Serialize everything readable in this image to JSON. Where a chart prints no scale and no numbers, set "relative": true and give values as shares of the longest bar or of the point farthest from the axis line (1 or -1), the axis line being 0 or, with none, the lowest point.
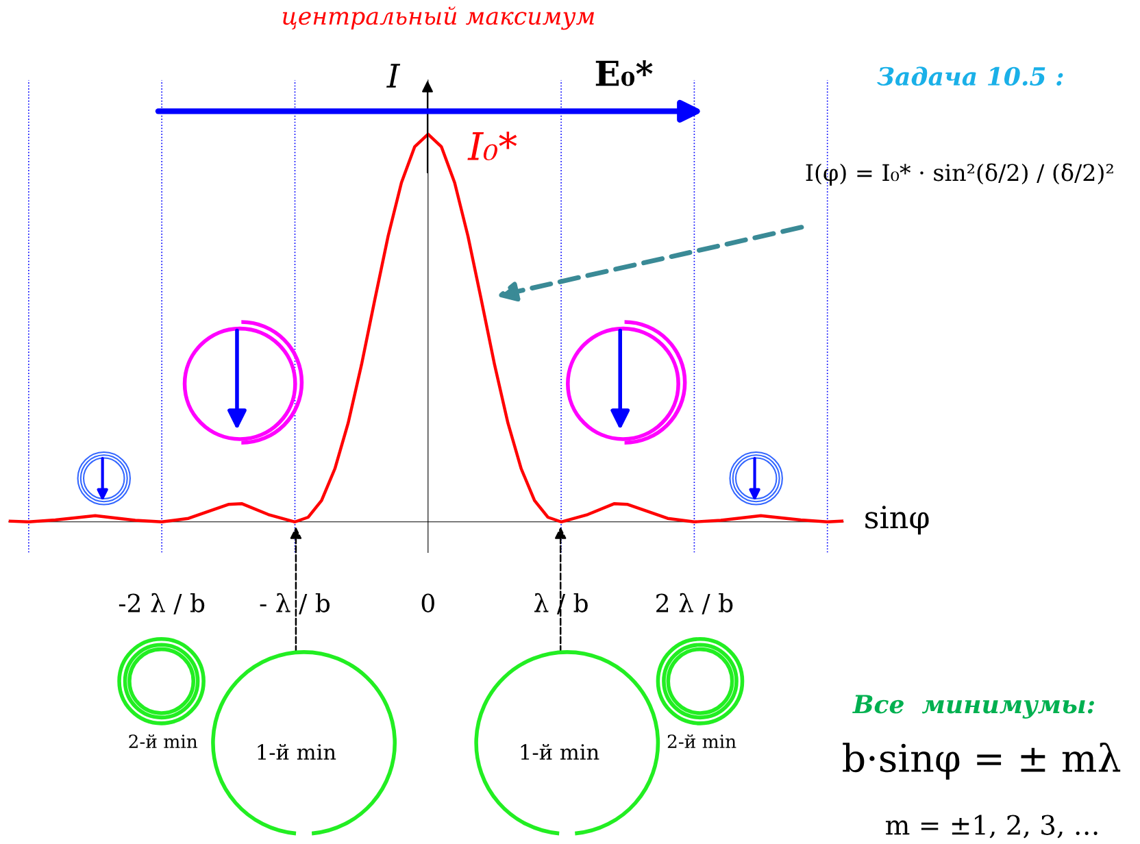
{
  "chart_data": {
    "type": "line",
    "relative": true,
    "title": "центральный максимум",
    "xlabel": "sinφ",
    "ylabel": "I",
    "x": [
      -3.15,
      -3.0,
      -2.8,
      -2.5,
      -2.2,
      -2.0,
      -1.8,
      -1.6,
      -1.5,
      -1.4,
      -1.2,
      -1.0,
      -0.9,
      -0.8,
      -0.7,
      -0.6,
      -0.5,
      -0.4,
      -0.3,
      -0.2,
      -0.1,
      0,
      0.1,
      0.2,
      0.3,
      0.4,
      0.5,
      0.6,
      0.7,
      0.8,
      0.9,
      1.0,
      1.2,
      1.4,
      1.5,
      1.6,
      1.8,
      2.0,
      2.2,
      2.5,
      2.8,
      3.0,
      3.12
    ],
    "series": [
      {
        "color": "#ff0000",
        "values": [
          0.002,
          0,
          0.005,
          0.016,
          0.004,
          0,
          0.009,
          0.033,
          0.045,
          0.047,
          0.019,
          0,
          0.012,
          0.055,
          0.137,
          0.255,
          0.405,
          0.573,
          0.737,
          0.875,
          0.968,
          1.0,
          0.968,
          0.875,
          0.737,
          0.573,
          0.405,
          0.255,
          0.137,
          0.055,
          0.012,
          0,
          0.019,
          0.047,
          0.045,
          0.033,
          0.009,
          0,
          0.004,
          0.016,
          0.005,
          0,
          0.002
        ]
      }
    ],
    "xlim": [
      -3.15,
      3.12
    ],
    "xticks": [
      {
        "value": -2,
        "label": "-2 λ / b"
      },
      {
        "value": -1,
        "label": "- λ / b"
      },
      0,
      {
        "value": 1,
        "label": "λ / b"
      },
      {
        "value": 2,
        "label": "2 λ / b"
      }
    ],
    "ref_lines": [
      {
        "axis": "x",
        "value": -3,
        "color": "#0000ff",
        "line_style": "dotted"
      },
      {
        "axis": "x",
        "value": -2,
        "color": "#0000ff",
        "line_style": "dotted"
      },
      {
        "axis": "x",
        "value": -1,
        "color": "#0000ff",
        "line_style": "dotted"
      },
      {
        "axis": "x",
        "value": 1,
        "color": "#0000ff",
        "line_style": "dotted"
      },
      {
        "axis": "x",
        "value": 2,
        "color": "#0000ff",
        "line_style": "dotted"
      },
      {
        "axis": "x",
        "value": 3,
        "color": "#0000ff",
        "line_style": "dotted"
      }
    ],
    "annotations": [
      "Задача 10.5 :",
      "I(φ) = I₀* · sin²(δ/2) / (δ/2)²",
      "Все  минимумы:",
      "b·sinφ = ± mλ",
      "m = ±1, 2, 3, …",
      {
        "text": "I₀*",
        "x": 0,
        "y": 1
      },
      "E₀*",
      "1-й min",
      "1-й min",
      "2-й min",
      "2-й min"
    ],
    "grid": false,
    "legend": false,
    "line_style": "solid",
    "marker": "none"
  }
}
